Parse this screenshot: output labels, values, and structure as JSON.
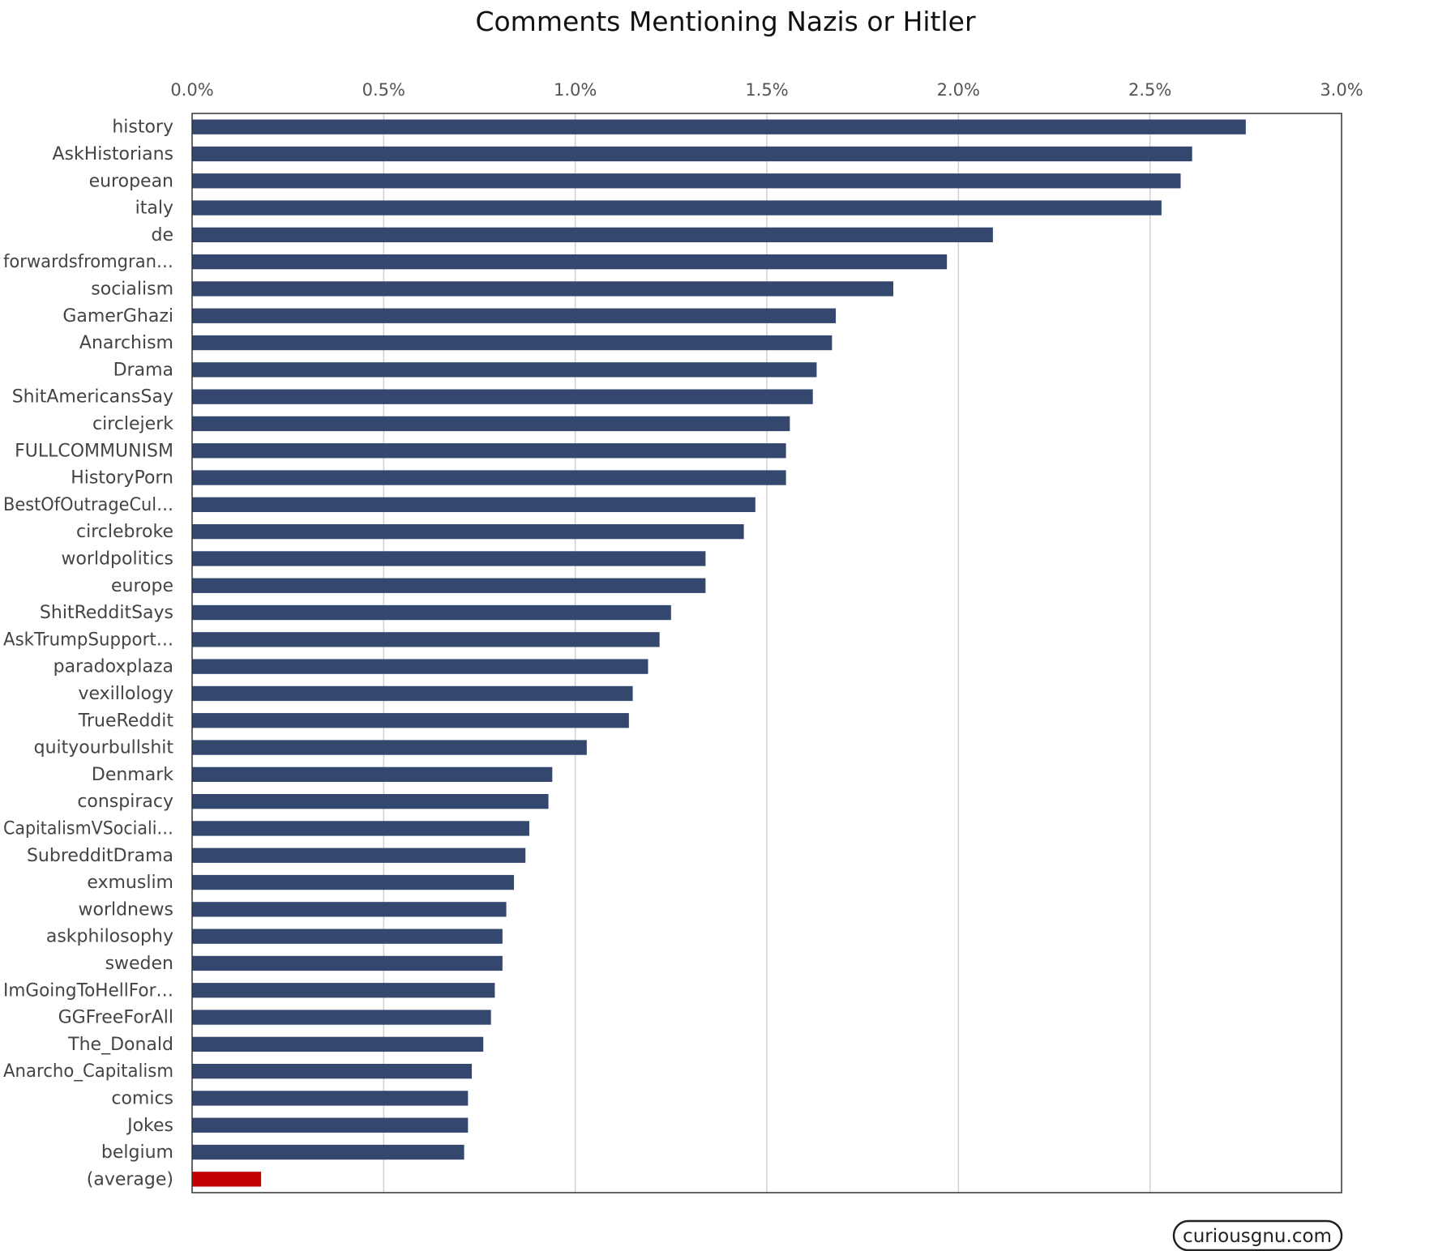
{
  "chart_data": {
    "type": "bar",
    "orientation": "horizontal",
    "title": "Comments Mentioning Nazis or Hitler",
    "xlabel": "",
    "ylabel": "",
    "xlim": [
      0,
      3.0
    ],
    "x_ticks": [
      "0.0%",
      "0.5%",
      "1.0%",
      "1.5%",
      "2.0%",
      "2.5%",
      "3.0%"
    ],
    "x_tick_values": [
      0,
      0.5,
      1.0,
      1.5,
      2.0,
      2.5,
      3.0
    ],
    "grid": true,
    "categories": [
      "history",
      "AskHistorians",
      "european",
      "italy",
      "de",
      "forwardsfromgran…",
      "socialism",
      "GamerGhazi",
      "Anarchism",
      "Drama",
      "ShitAmericansSay",
      "circlejerk",
      "FULLCOMMUNISM",
      "HistoryPorn",
      "BestOfOutrageCul…",
      "circlebroke",
      "worldpolitics",
      "europe",
      "ShitRedditSays",
      "AskTrumpSupport…",
      "paradoxplaza",
      "vexillology",
      "TrueReddit",
      "quityourbullshit",
      "Denmark",
      "conspiracy",
      "CapitalismVSociali…",
      "SubredditDrama",
      "exmuslim",
      "worldnews",
      "askphilosophy",
      "sweden",
      "ImGoingToHellFor…",
      "GGFreeForAll",
      "The_Donald",
      "Anarcho_Capitalism",
      "comics",
      "Jokes",
      "belgium",
      "(average)"
    ],
    "values": [
      2.75,
      2.61,
      2.58,
      2.53,
      2.09,
      1.97,
      1.83,
      1.68,
      1.67,
      1.63,
      1.62,
      1.56,
      1.55,
      1.55,
      1.47,
      1.44,
      1.34,
      1.34,
      1.25,
      1.22,
      1.19,
      1.15,
      1.14,
      1.03,
      0.94,
      0.93,
      0.88,
      0.87,
      0.84,
      0.82,
      0.81,
      0.81,
      0.79,
      0.78,
      0.76,
      0.73,
      0.72,
      0.72,
      0.71,
      0.18
    ],
    "highlight_category": "(average)",
    "colors": {
      "bar": "#34476f",
      "highlight": "#c00000",
      "grid": "#d0d0d0",
      "frame": "#333333"
    }
  },
  "watermark": "curiousgnu.com"
}
